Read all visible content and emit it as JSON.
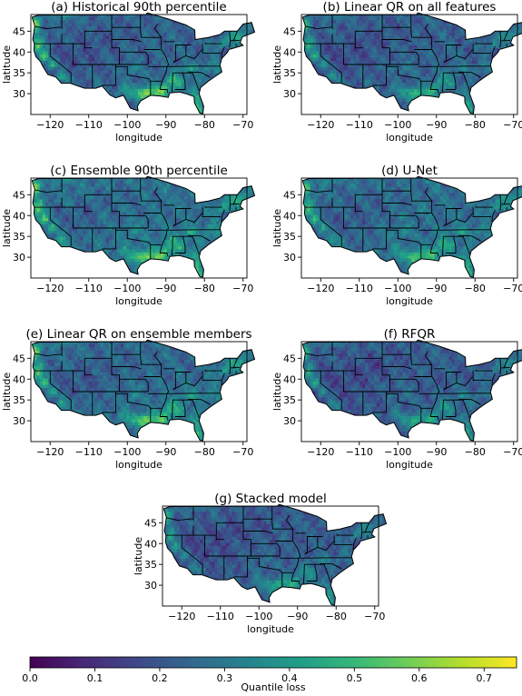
{
  "colors": {
    "viridis": [
      "#440154",
      "#482878",
      "#3e4989",
      "#31688e",
      "#26828e",
      "#1f9e89",
      "#35b779",
      "#6ece58",
      "#b5de2b",
      "#fde725"
    ]
  },
  "chart_data": {
    "type": "heatmap",
    "x_ticks": [
      -120,
      -110,
      -100,
      -90,
      -80,
      -70
    ],
    "y_ticks": [
      30,
      35,
      40,
      45
    ],
    "x_tick_labels": [
      "−120",
      "−110",
      "−100",
      "−90",
      "−80",
      "−70"
    ],
    "y_tick_labels": [
      "30",
      "35",
      "40",
      "45"
    ],
    "xlim": [
      -125,
      -69
    ],
    "ylim": [
      25,
      49
    ],
    "xlabel": "longitude",
    "ylabel": "latitude",
    "panels": [
      {
        "title": "(a) Historical 90th percentile",
        "base": 0.24,
        "hot": 0.62
      },
      {
        "title": "(b) Linear QR on all features",
        "base": 0.23,
        "hot": 0.5
      },
      {
        "title": "(c) Ensemble 90th percentile",
        "base": 0.28,
        "hot": 0.62
      },
      {
        "title": "(d) U-Net",
        "base": 0.27,
        "hot": 0.55
      },
      {
        "title": "(e) Linear QR on ensemble members",
        "base": 0.26,
        "hot": 0.6
      },
      {
        "title": "(f) RFQR",
        "base": 0.22,
        "hot": 0.48
      },
      {
        "title": "(g) Stacked model",
        "base": 0.22,
        "hot": 0.48
      }
    ],
    "colorbar": {
      "label": "Quantile loss",
      "range": [
        0.0,
        0.75
      ],
      "ticks": [
        0.0,
        0.1,
        0.2,
        0.3,
        0.4,
        0.5,
        0.6,
        0.7
      ],
      "tick_labels": [
        "0.0",
        "0.1",
        "0.2",
        "0.3",
        "0.4",
        "0.5",
        "0.6",
        "0.7"
      ]
    }
  }
}
